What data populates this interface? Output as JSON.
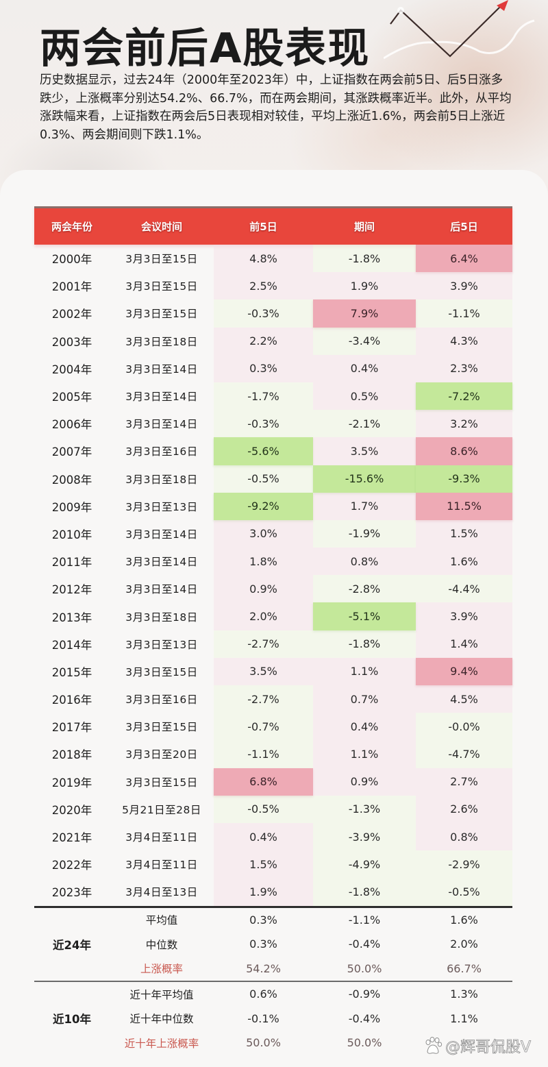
{
  "title": "两会前后A股表现",
  "intro": "历史数据显示，过去24年（2000年至2023年）中，上证指数在两会前5日、后5日涨多跌少，上涨概率分别达54.2%、66.7%，而在两会期间，其涨跌概率近半。此外，从平均涨跌幅来看，上证指数在两会后5日表现相对较佳，平均上涨近1.6%，两会前5日上涨近0.3%、两会期间则下跌1.1%。",
  "colors": {
    "header_red": "#e8463c",
    "highlight_red": "#eeaab5",
    "highlight_green": "#c4e89a",
    "prob_label_red": "#c9584f"
  },
  "table": {
    "headers": [
      "两会年份",
      "会议时间",
      "前5日",
      "期间",
      "后5日"
    ],
    "rows": [
      {
        "year": "2000年",
        "date": "3月3日至15日",
        "pre": "4.8%",
        "during": "-1.8%",
        "post": "6.4%"
      },
      {
        "year": "2001年",
        "date": "3月3日至15日",
        "pre": "2.5%",
        "during": "1.9%",
        "post": "3.9%"
      },
      {
        "year": "2002年",
        "date": "3月3日至15日",
        "pre": "-0.3%",
        "during": "7.9%",
        "post": "-1.1%"
      },
      {
        "year": "2003年",
        "date": "3月3日至18日",
        "pre": "2.2%",
        "during": "-3.4%",
        "post": "4.3%"
      },
      {
        "year": "2004年",
        "date": "3月3日至14日",
        "pre": "0.3%",
        "during": "0.4%",
        "post": "2.3%"
      },
      {
        "year": "2005年",
        "date": "3月3日至14日",
        "pre": "-1.7%",
        "during": "0.5%",
        "post": "-7.2%"
      },
      {
        "year": "2006年",
        "date": "3月3日至14日",
        "pre": "-0.3%",
        "during": "-2.1%",
        "post": "3.2%"
      },
      {
        "year": "2007年",
        "date": "3月3日至16日",
        "pre": "-5.6%",
        "during": "3.5%",
        "post": "8.6%"
      },
      {
        "year": "2008年",
        "date": "3月3日至18日",
        "pre": "-0.5%",
        "during": "-15.6%",
        "post": "-9.3%"
      },
      {
        "year": "2009年",
        "date": "3月3日至13日",
        "pre": "-9.2%",
        "during": "1.7%",
        "post": "11.5%"
      },
      {
        "year": "2010年",
        "date": "3月3日至14日",
        "pre": "3.0%",
        "during": "-1.9%",
        "post": "1.5%"
      },
      {
        "year": "2011年",
        "date": "3月3日至14日",
        "pre": "1.8%",
        "during": "0.8%",
        "post": "1.6%"
      },
      {
        "year": "2012年",
        "date": "3月3日至14日",
        "pre": "0.9%",
        "during": "-2.8%",
        "post": "-4.4%"
      },
      {
        "year": "2013年",
        "date": "3月3日至18日",
        "pre": "2.0%",
        "during": "-5.1%",
        "post": "3.9%"
      },
      {
        "year": "2014年",
        "date": "3月3日至13日",
        "pre": "-2.7%",
        "during": "-1.8%",
        "post": "1.4%"
      },
      {
        "year": "2015年",
        "date": "3月3日至15日",
        "pre": "3.5%",
        "during": "1.1%",
        "post": "9.4%"
      },
      {
        "year": "2016年",
        "date": "3月3日至16日",
        "pre": "-2.7%",
        "during": "0.7%",
        "post": "4.5%"
      },
      {
        "year": "2017年",
        "date": "3月3日至15日",
        "pre": "-0.7%",
        "during": "0.4%",
        "post": "-0.0%"
      },
      {
        "year": "2018年",
        "date": "3月3日至20日",
        "pre": "-1.1%",
        "during": "1.1%",
        "post": "-4.7%"
      },
      {
        "year": "2019年",
        "date": "3月3日至15日",
        "pre": "6.8%",
        "during": "0.9%",
        "post": "2.7%"
      },
      {
        "year": "2020年",
        "date": "5月21日至28日",
        "pre": "-0.5%",
        "during": "-1.3%",
        "post": "2.6%"
      },
      {
        "year": "2021年",
        "date": "3月4日至11日",
        "pre": "0.4%",
        "during": "-3.9%",
        "post": "0.8%"
      },
      {
        "year": "2022年",
        "date": "3月4日至11日",
        "pre": "1.5%",
        "during": "-4.9%",
        "post": "-2.9%"
      },
      {
        "year": "2023年",
        "date": "3月4日至13日",
        "pre": "1.9%",
        "during": "-1.8%",
        "post": "-0.5%"
      }
    ],
    "summary": [
      {
        "group": "近24年",
        "rows": [
          {
            "metric": "平均值",
            "pre": "0.3%",
            "during": "-1.1%",
            "post": "1.6%"
          },
          {
            "metric": "中位数",
            "pre": "0.3%",
            "during": "-0.4%",
            "post": "2.0%"
          },
          {
            "metric": "上涨概率",
            "pre": "54.2%",
            "during": "50.0%",
            "post": "66.7%"
          }
        ]
      },
      {
        "group": "近10年",
        "rows": [
          {
            "metric": "近十年平均值",
            "pre": "0.6%",
            "during": "-0.9%",
            "post": "1.3%"
          },
          {
            "metric": "近十年中位数",
            "pre": "-0.1%",
            "during": "-0.4%",
            "post": "1.1%"
          },
          {
            "metric": "近十年上涨概率",
            "pre": "50.0%",
            "during": "50.0%",
            "post": ""
          }
        ]
      }
    ]
  },
  "watermark": "@辉哥侃股V"
}
